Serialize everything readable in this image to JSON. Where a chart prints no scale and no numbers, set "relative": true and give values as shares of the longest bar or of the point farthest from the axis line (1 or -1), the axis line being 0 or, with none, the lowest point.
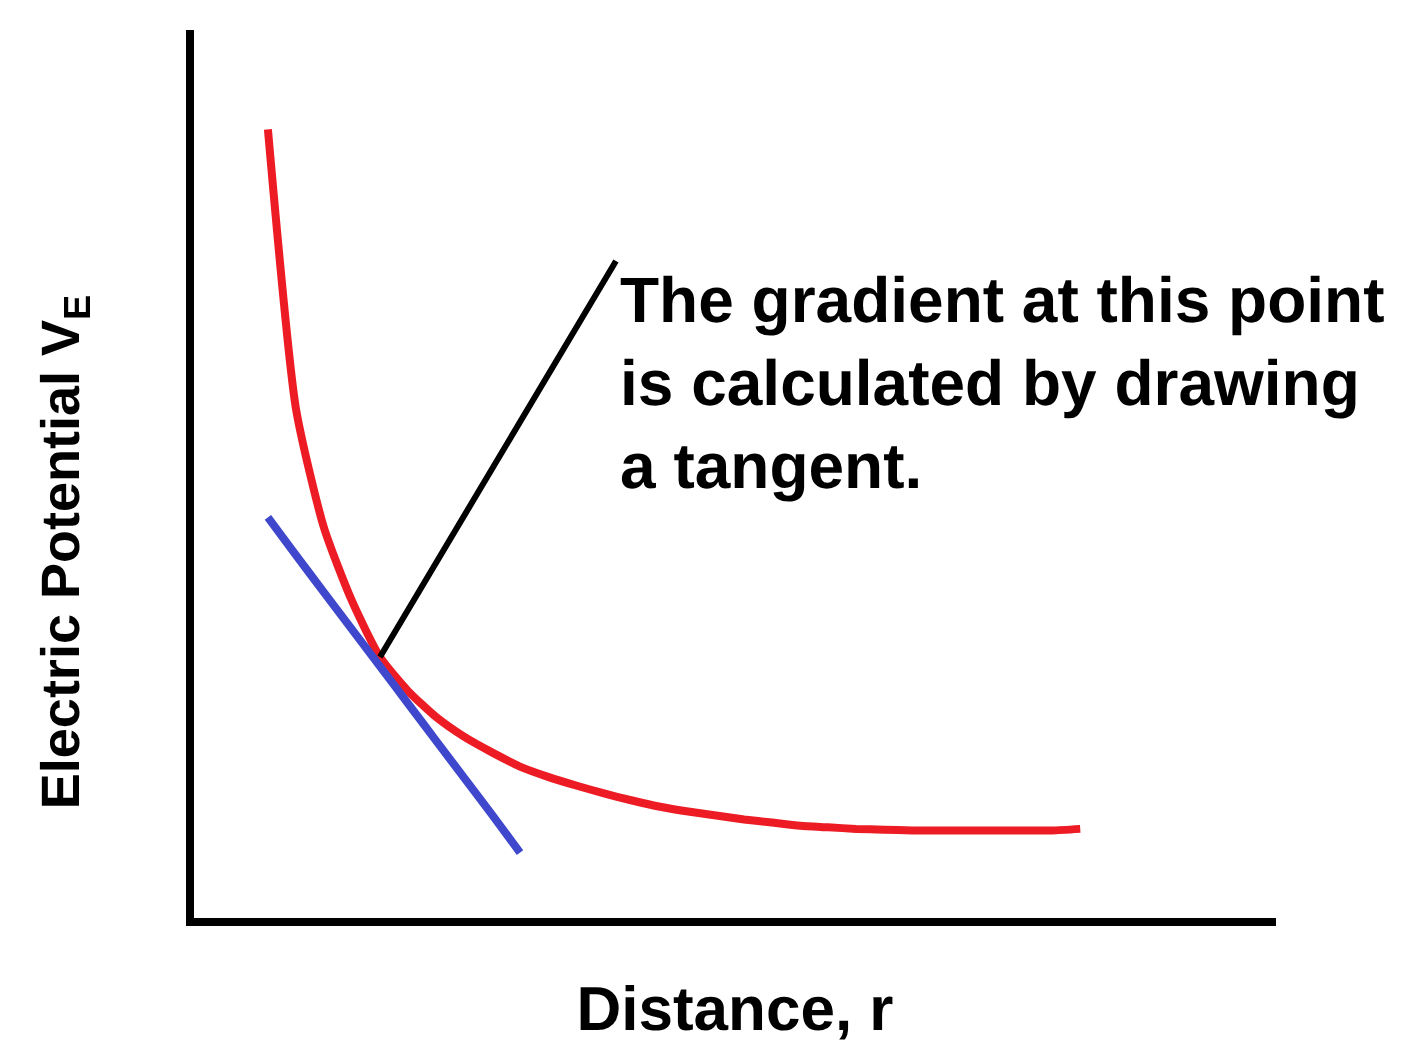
{
  "chart_data": {
    "type": "line",
    "relative": true,
    "xlabel": "Distance, r",
    "ylabel": "Electric Potential V$_{E}$",
    "categories": [
      null,
      null,
      null,
      null,
      null,
      null,
      null,
      null,
      null,
      null,
      null,
      null,
      null,
      null,
      null,
      null,
      null,
      null,
      null,
      null,
      null,
      null,
      null,
      null,
      null,
      null,
      null,
      null,
      null,
      null
    ],
    "series": [
      {
        "color": "#ed1c24",
        "values": [
          1.0,
          0.646,
          0.495,
          0.402,
          0.331,
          0.288,
          0.255,
          0.23,
          0.21,
          0.192,
          0.179,
          0.168,
          0.158,
          0.149,
          0.141,
          0.135,
          0.13,
          0.125,
          0.121,
          0.117,
          0.115,
          0.113,
          0.112,
          0.111,
          0.111,
          0.111,
          0.111,
          0.111,
          0.111,
          0.113
        ]
      },
      {
        "color": "#3f48cc",
        "values": [
          0.508,
          0.46,
          0.413,
          0.366,
          0.319,
          0.272,
          0.225,
          0.178,
          0.131,
          0.083,
          null,
          null,
          null,
          null,
          null,
          null,
          null,
          null,
          null,
          null,
          null,
          null,
          null,
          null,
          null,
          null,
          null,
          null,
          null,
          null
        ]
      }
    ],
    "annotations": [
      "The gradient at this point is calculated by drawing a tangent."
    ]
  }
}
